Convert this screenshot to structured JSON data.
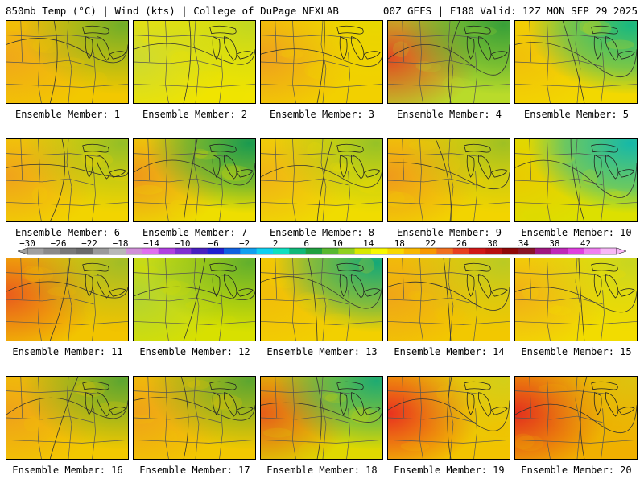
{
  "header": {
    "left": "850mb Temp (°C) | Wind (kts) | College of DuPage NEXLAB",
    "right": "00Z GEFS | F180 Valid: 12Z MON SEP 29 2025"
  },
  "panel_label_prefix": "Ensemble Member: ",
  "members": [
    {
      "label": "Ensemble Member: 1",
      "base": "#f2c800",
      "west": "#f0a020",
      "ne": "#3aa23a",
      "ne_strength": 0.55,
      "west_strength": 0.5
    },
    {
      "label": "Ensemble Member: 2",
      "base": "#f0e400",
      "west": "#c8d838",
      "ne": "#9ccd3a",
      "ne_strength": 0.4,
      "west_strength": 0.6
    },
    {
      "label": "Ensemble Member: 3",
      "base": "#f2d000",
      "west": "#ee9a20",
      "ne": "#d9e000",
      "ne_strength": 0.3,
      "west_strength": 0.6
    },
    {
      "label": "Ensemble Member: 4",
      "base": "#b9db2a",
      "west": "#e83020",
      "ne": "#2a9a3a",
      "ne_strength": 0.75,
      "west_strength": 0.55
    },
    {
      "label": "Ensemble Member: 5",
      "base": "#f2d800",
      "west": "#f0b010",
      "ne": "#18b880",
      "ne_strength": 0.9,
      "west_strength": 0.3
    },
    {
      "label": "Ensemble Member: 6",
      "base": "#f2d400",
      "west": "#ef9a20",
      "ne": "#55b040",
      "ne_strength": 0.45,
      "west_strength": 0.55
    },
    {
      "label": "Ensemble Member: 7",
      "base": "#eede00",
      "west": "#ee8a20",
      "ne": "#1a9a50",
      "ne_strength": 0.85,
      "west_strength": 0.55
    },
    {
      "label": "Ensemble Member: 8",
      "base": "#f0dc00",
      "west": "#f0a020",
      "ne": "#5ab040",
      "ne_strength": 0.45,
      "west_strength": 0.4
    },
    {
      "label": "Ensemble Member: 9",
      "base": "#f2d400",
      "west": "#ee9020",
      "ne": "#5ab040",
      "ne_strength": 0.4,
      "west_strength": 0.55
    },
    {
      "label": "Ensemble Member: 10",
      "base": "#dce000",
      "west": "#f0c000",
      "ne": "#16b8a8",
      "ne_strength": 0.95,
      "west_strength": 0.35
    },
    {
      "label": "Ensemble Member: 11",
      "base": "#f2c400",
      "west": "#e85020",
      "ne": "#6ab840",
      "ne_strength": 0.45,
      "west_strength": 0.6
    },
    {
      "label": "Ensemble Member: 12",
      "base": "#d8e000",
      "west": "#a8d040",
      "ne": "#2e9a40",
      "ne_strength": 0.55,
      "west_strength": 0.5
    },
    {
      "label": "Ensemble Member: 13",
      "base": "#f2d000",
      "west": "#f0b010",
      "ne": "#14a878",
      "ne_strength": 0.85,
      "west_strength": 0.3
    },
    {
      "label": "Ensemble Member: 14",
      "base": "#f2c800",
      "west": "#ef9a20",
      "ne": "#8ccc40",
      "ne_strength": 0.4,
      "west_strength": 0.45
    },
    {
      "label": "Ensemble Member: 15",
      "base": "#f2dc00",
      "west": "#f0a020",
      "ne": "#9ed040",
      "ne_strength": 0.35,
      "west_strength": 0.45
    },
    {
      "label": "Ensemble Member: 16",
      "base": "#f2c800",
      "west": "#ee9820",
      "ne": "#2a9a40",
      "ne_strength": 0.6,
      "west_strength": 0.5
    },
    {
      "label": "Ensemble Member: 17",
      "base": "#f2c800",
      "west": "#ee9820",
      "ne": "#2a9a40",
      "ne_strength": 0.6,
      "west_strength": 0.5
    },
    {
      "label": "Ensemble Member: 18",
      "base": "#e0d800",
      "west": "#e83c20",
      "ne": "#14a878",
      "ne_strength": 0.8,
      "west_strength": 0.5
    },
    {
      "label": "Ensemble Member: 19",
      "base": "#f2c400",
      "west": "#e83020",
      "ne": "#b6d830",
      "ne_strength": 0.35,
      "west_strength": 0.7
    },
    {
      "label": "Ensemble Member: 20",
      "base": "#f0b000",
      "west": "#e22820",
      "ne": "#c8d820",
      "ne_strength": 0.3,
      "west_strength": 0.65
    }
  ],
  "colorbar": {
    "ticks": [
      "−30",
      "−26",
      "−22",
      "−18",
      "−14",
      "−10",
      "−6",
      "−2",
      "2",
      "6",
      "10",
      "14",
      "18",
      "22",
      "26",
      "30",
      "34",
      "38",
      "42"
    ],
    "colors": [
      "#a0a0a0",
      "#8a8a8a",
      "#787878",
      "#6a6a6a",
      "#9a9a9a",
      "#b8b8b8",
      "#d090d8",
      "#e070f0",
      "#b040e0",
      "#8030d0",
      "#4820c0",
      "#2020d0",
      "#1060e0",
      "#10a0f0",
      "#10d0f0",
      "#10e0c0",
      "#10b878",
      "#20a040",
      "#58b830",
      "#90d020",
      "#d8e800",
      "#f8f800",
      "#f8d800",
      "#f8b800",
      "#f89800",
      "#f07020",
      "#e84020",
      "#d01818",
      "#b81010",
      "#900808",
      "#8a1428",
      "#a01880",
      "#c028b8",
      "#e040e0",
      "#f080f0",
      "#f8b8f8"
    ]
  }
}
